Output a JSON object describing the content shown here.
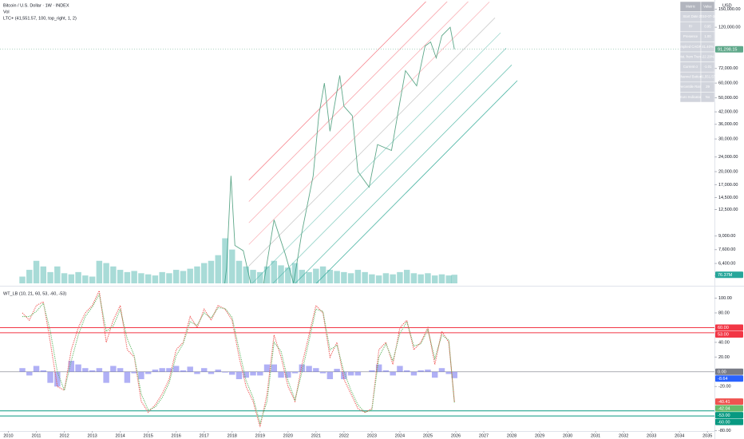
{
  "chart_data": [
    {
      "type": "line",
      "title": "Bitcoin / U.S. Dollar · 1W · INDEX",
      "currency": "USD",
      "indicators": [
        "Vol",
        "LTC+ (41,551.57, 100, top_right, 1, 2)"
      ],
      "log_scale": true,
      "grid": false,
      "xlim": [
        2009.7,
        2035.25
      ],
      "ylim": [
        5000,
        165000
      ],
      "yticks": [
        {
          "value": 150000,
          "label": "150,000.00"
        },
        {
          "value": 120000,
          "label": "120,000.00"
        },
        {
          "value": 72000,
          "label": "72,000.00"
        },
        {
          "value": 60000,
          "label": "60,000.00"
        },
        {
          "value": 50000,
          "label": "50,000.00"
        },
        {
          "value": 42000,
          "label": "42,000.00"
        },
        {
          "value": 36000,
          "label": "36,000.00"
        },
        {
          "value": 30000,
          "label": "30,000.00"
        },
        {
          "value": 24000,
          "label": "24,000.00"
        },
        {
          "value": 20000,
          "label": "20,000.00"
        },
        {
          "value": 17000,
          "label": "17,000.00"
        },
        {
          "value": 14500,
          "label": "14,500.00"
        },
        {
          "value": 12500,
          "label": "12,500.00"
        },
        {
          "value": 9000,
          "label": "9,000.00"
        },
        {
          "value": 7600,
          "label": "7,600.00"
        },
        {
          "value": 6400,
          "label": "6,400.00"
        },
        {
          "value": 5500,
          "label": "5,500.00"
        }
      ],
      "y2lim": [
        0,
        2500
      ],
      "series": [
        {
          "name": "Bitcoin",
          "kind": "line",
          "style": "solid",
          "color": "#5fa88a",
          "price_line": true,
          "last_label": "91,298.15",
          "x": [
            2017.5,
            2017.8,
            2017.96,
            2018.1,
            2018.4,
            2018.9,
            2019.0,
            2019.5,
            2019.9,
            2020.2,
            2020.5,
            2020.9,
            2021.1,
            2021.3,
            2021.5,
            2021.85,
            2022.0,
            2022.3,
            2022.5,
            2022.9,
            2023.2,
            2023.7,
            2023.95,
            2024.2,
            2024.6,
            2024.9,
            2025.1,
            2025.3,
            2025.5,
            2025.8,
            2025.95
          ],
          "values": [
            2500,
            6000,
            19000,
            8000,
            7500,
            3500,
            3800,
            11000,
            7200,
            5000,
            9500,
            19000,
            40000,
            60000,
            33000,
            66000,
            45000,
            40000,
            20000,
            16500,
            28000,
            26000,
            43000,
            70000,
            58000,
            95000,
            100000,
            82000,
            108000,
            120000,
            91298.15
          ]
        },
        {
          "name": "Vol",
          "kind": "bar",
          "axis": "y2",
          "color": "#26a69a66",
          "tag_color": "#26a69a",
          "last_label": "76.37M",
          "x": [
            2010.5,
            2010.75,
            2011.0,
            2011.25,
            2011.5,
            2011.75,
            2012.0,
            2012.25,
            2012.5,
            2012.75,
            2013.0,
            2013.25,
            2013.5,
            2013.75,
            2014.0,
            2014.25,
            2014.5,
            2014.75,
            2015.0,
            2015.25,
            2015.5,
            2015.75,
            2016.0,
            2016.25,
            2016.5,
            2016.75,
            2017.0,
            2017.25,
            2017.5,
            2017.75,
            2018.0,
            2018.25,
            2018.5,
            2018.75,
            2019.0,
            2019.25,
            2019.5,
            2019.75,
            2020.0,
            2020.25,
            2020.5,
            2020.75,
            2021.0,
            2021.25,
            2021.5,
            2021.75,
            2022.0,
            2022.25,
            2022.5,
            2022.75,
            2023.0,
            2023.25,
            2023.5,
            2023.75,
            2024.0,
            2024.25,
            2024.5,
            2024.75,
            2025.0,
            2025.25,
            2025.5,
            2025.75,
            2025.95
          ],
          "values": [
            60,
            120,
            200,
            150,
            100,
            150,
            90,
            80,
            100,
            70,
            60,
            200,
            180,
            150,
            120,
            100,
            110,
            90,
            80,
            70,
            100,
            90,
            120,
            110,
            130,
            150,
            180,
            200,
            250,
            400,
            300,
            200,
            150,
            120,
            100,
            150,
            200,
            160,
            140,
            180,
            120,
            100,
            130,
            150,
            120,
            110,
            100,
            90,
            120,
            100,
            80,
            70,
            90,
            80,
            100,
            120,
            90,
            80,
            90,
            70,
            80,
            70,
            76.37
          ]
        }
      ],
      "bands": [
        {
          "color": "#f2364599",
          "x": [
            2018.6,
            2026.6
          ],
          "values": [
            18000,
            295900
          ]
        },
        {
          "color": "#f2364577",
          "x": [
            2018.6,
            2026.8
          ],
          "values": [
            13800,
            243400
          ]
        },
        {
          "color": "#f2364566",
          "x": [
            2018.6,
            2027.0
          ],
          "values": [
            10600,
            200600
          ]
        },
        {
          "color": "#f2364555",
          "x": [
            2018.6,
            2027.2
          ],
          "values": [
            8100,
            164300
          ]
        },
        {
          "color": "#9e9e9e88",
          "x": [
            2018.6,
            2027.4
          ],
          "values": [
            6200,
            134900
          ]
        },
        {
          "color": "#08998166",
          "x": [
            2018.6,
            2027.6
          ],
          "values": [
            4800,
            112000
          ]
        },
        {
          "color": "#08998177",
          "x": [
            2018.6,
            2027.8
          ],
          "values": [
            3700,
            92600
          ]
        },
        {
          "color": "#08998199",
          "x": [
            2018.6,
            2028.0
          ],
          "values": [
            2800,
            75200
          ]
        },
        {
          "color": "#089981bb",
          "x": [
            2018.6,
            2028.2
          ],
          "values": [
            2150,
            61900
          ]
        }
      ],
      "table": {
        "rows": [
          [
            "Metric",
            "Value"
          ],
          [
            "Start Date",
            "2010-07-18"
          ],
          [
            "R²",
            "0.95"
          ],
          [
            "Presence",
            "1.00"
          ],
          [
            "Implied CAGR",
            "41.40%"
          ],
          [
            "Dist. from Trend",
            "-22.29%"
          ],
          [
            "Current σ",
            "-1.01"
          ],
          [
            "Channel Bottom",
            "41,551.57"
          ],
          [
            "Percentile Rank",
            "29"
          ],
          [
            "Euro Indicator",
            "No"
          ]
        ]
      }
    },
    {
      "type": "line",
      "title": "WT_LB (10, 21, 60, 53, -60, -53)",
      "log_scale": false,
      "grid": false,
      "xlim": [
        2009.7,
        2035.25
      ],
      "xticks": [
        2010,
        2011,
        2012,
        2013,
        2014,
        2015,
        2016,
        2017,
        2018,
        2019,
        2020,
        2021,
        2022,
        2023,
        2024,
        2025,
        2026,
        2027,
        2028,
        2029,
        2030,
        2031,
        2032,
        2033,
        2034,
        2035
      ],
      "ylim": [
        -80.4,
        112.5
      ],
      "yticks": [
        {
          "value": 100,
          "label": "100.00"
        },
        {
          "value": 80,
          "label": "80.00"
        },
        {
          "value": 40,
          "label": "40.00"
        },
        {
          "value": 20,
          "label": "20.00"
        },
        {
          "value": -20,
          "label": "-20.00"
        },
        {
          "value": -80,
          "label": "-80.00"
        }
      ],
      "levels": [
        {
          "value": 60,
          "label": "60.00",
          "color": "#f23645"
        },
        {
          "value": 53,
          "label": "53.00",
          "color": "#f23645"
        },
        {
          "value": 0,
          "label": "0.00",
          "color": "#787b86"
        },
        {
          "value": -53,
          "label": "-53.00",
          "color": "#089981"
        },
        {
          "value": -60,
          "label": "-60.00",
          "color": "#089981"
        }
      ],
      "x": [
        2010.5,
        2010.75,
        2011.0,
        2011.25,
        2011.5,
        2011.75,
        2012.0,
        2012.25,
        2012.5,
        2012.75,
        2013.0,
        2013.25,
        2013.5,
        2013.75,
        2014.0,
        2014.25,
        2014.5,
        2014.75,
        2015.0,
        2015.25,
        2015.5,
        2015.75,
        2016.0,
        2016.25,
        2016.5,
        2016.75,
        2017.0,
        2017.25,
        2017.5,
        2017.75,
        2018.0,
        2018.25,
        2018.5,
        2018.75,
        2019.0,
        2019.25,
        2019.5,
        2019.75,
        2020.0,
        2020.25,
        2020.5,
        2020.75,
        2021.0,
        2021.25,
        2021.5,
        2021.75,
        2022.0,
        2022.25,
        2022.5,
        2022.75,
        2023.0,
        2023.25,
        2023.5,
        2023.75,
        2024.0,
        2024.25,
        2024.5,
        2024.75,
        2025.0,
        2025.25,
        2025.5,
        2025.75,
        2025.95
      ],
      "series": [
        {
          "kind": "bar",
          "color": "#7b7bef99",
          "tag_color": "#2962ff",
          "last_label": "-8.64",
          "values": [
            5,
            -5,
            8,
            2,
            -15,
            -20,
            0,
            15,
            10,
            5,
            2,
            5,
            -15,
            8,
            5,
            -15,
            -2,
            -10,
            -3,
            3,
            5,
            5,
            8,
            2,
            7,
            -3,
            5,
            -3,
            3,
            -1,
            -4,
            -10,
            -8,
            -5,
            -5,
            10,
            10,
            -8,
            -8,
            -2,
            10,
            8,
            5,
            -2,
            -10,
            4,
            -10,
            -5,
            -5,
            0,
            2,
            10,
            2,
            -5,
            8,
            2,
            -5,
            2,
            3,
            -8,
            5,
            -3,
            -8.64
          ]
        },
        {
          "kind": "line",
          "style": "dotted",
          "color": "#ef5350",
          "last_label": "-40.41",
          "values": [
            80,
            70,
            90,
            95,
            40,
            -20,
            -25,
            30,
            60,
            80,
            90,
            110,
            40,
            70,
            90,
            30,
            20,
            -40,
            -55,
            -45,
            -30,
            -10,
            30,
            40,
            75,
            60,
            85,
            70,
            90,
            85,
            70,
            20,
            -20,
            -40,
            -75,
            -30,
            50,
            20,
            -20,
            -40,
            10,
            50,
            90,
            80,
            20,
            40,
            -10,
            -30,
            -50,
            -55,
            -50,
            30,
            40,
            10,
            60,
            70,
            30,
            40,
            60,
            10,
            55,
            40,
            -40.41
          ]
        },
        {
          "kind": "line",
          "style": "dotted",
          "color": "#66bb6a",
          "last_label": "-42.04",
          "values": [
            75,
            75,
            82,
            93,
            55,
            0,
            -25,
            15,
            50,
            75,
            88,
            105,
            55,
            62,
            85,
            45,
            22,
            -30,
            -52,
            -48,
            -35,
            -15,
            22,
            38,
            68,
            63,
            80,
            73,
            87,
            86,
            74,
            30,
            -12,
            -35,
            -70,
            -40,
            40,
            28,
            -12,
            -38,
            0,
            42,
            85,
            82,
            30,
            36,
            0,
            -25,
            -45,
            -55,
            -52,
            20,
            38,
            15,
            52,
            68,
            35,
            38,
            57,
            18,
            50,
            43,
            -42.04
          ]
        }
      ]
    }
  ]
}
